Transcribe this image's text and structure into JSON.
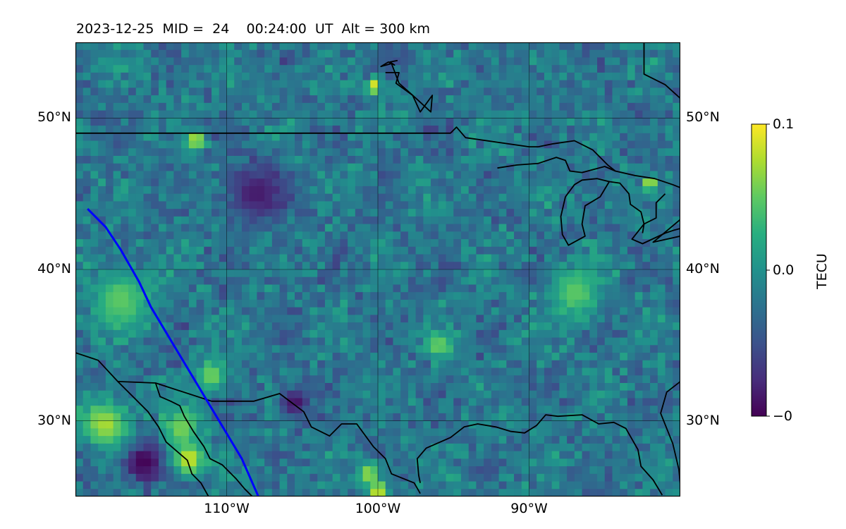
{
  "title": "2023-12-25  MID =  24    00:24:00  UT  Alt = 300 km",
  "chart_data": {
    "type": "heatmap",
    "projection": "equirectangular",
    "lon_range": [
      -120,
      -80
    ],
    "lat_range": [
      25,
      55
    ],
    "grid": true,
    "x_ticks": [
      {
        "lon": -110,
        "label": "110°W"
      },
      {
        "lon": -100,
        "label": "100°W"
      },
      {
        "lon": -90,
        "label": "90°W"
      }
    ],
    "y_ticks": [
      {
        "lat": 50,
        "label": "50°N"
      },
      {
        "lat": 40,
        "label": "40°N"
      },
      {
        "lat": 30,
        "label": "30°N"
      }
    ],
    "colormap": "viridis",
    "colorbar": {
      "label": "TECU",
      "min": -0.1,
      "max": 0.1,
      "ticks": [
        {
          "value": 0.1,
          "label": "0.1"
        },
        {
          "value": 0.0,
          "label": "0.0"
        },
        {
          "value": -0.1,
          "label": "−0.1"
        }
      ]
    },
    "field": {
      "cell_deg": 0.5,
      "mean": -0.02,
      "noise": 0.035,
      "hotspots": [
        {
          "lon": -115.5,
          "lat": 27.2,
          "value": -0.1,
          "radius": 1.4
        },
        {
          "lon": -112.5,
          "lat": 27.5,
          "value": 0.09,
          "radius": 1.0
        },
        {
          "lon": -118,
          "lat": 29.8,
          "value": 0.075,
          "radius": 1.5
        },
        {
          "lon": -113,
          "lat": 29.5,
          "value": 0.06,
          "radius": 1.3
        },
        {
          "lon": -111,
          "lat": 33,
          "value": 0.06,
          "radius": 1.0
        },
        {
          "lon": -100,
          "lat": 25.4,
          "value": 0.1,
          "radius": 0.6
        },
        {
          "lon": -100.6,
          "lat": 26.5,
          "value": 0.07,
          "radius": 0.8
        },
        {
          "lon": -105.5,
          "lat": 31.2,
          "value": -0.09,
          "radius": 1.0
        },
        {
          "lon": -96,
          "lat": 35,
          "value": 0.06,
          "radius": 0.8
        },
        {
          "lon": -112,
          "lat": 48.5,
          "value": 0.1,
          "radius": 0.5
        },
        {
          "lon": -100.3,
          "lat": 52.1,
          "value": 0.1,
          "radius": 0.5
        },
        {
          "lon": -108,
          "lat": 45,
          "value": -0.085,
          "radius": 2.0
        },
        {
          "lon": -117,
          "lat": 38,
          "value": 0.05,
          "radius": 2.0
        },
        {
          "lon": -87,
          "lat": 38.5,
          "value": 0.05,
          "radius": 1.6
        },
        {
          "lon": -82,
          "lat": 45.6,
          "value": 0.1,
          "radius": 0.4
        }
      ]
    },
    "track": {
      "color": "#0000ff",
      "points": [
        [
          -119.2,
          44
        ],
        [
          -118,
          42.8
        ],
        [
          -117,
          41.3
        ],
        [
          -115.8,
          39.2
        ],
        [
          -115,
          37.5
        ],
        [
          -113.5,
          35
        ],
        [
          -112,
          32.5
        ],
        [
          -110.5,
          30
        ],
        [
          -109,
          27.5
        ],
        [
          -107.9,
          25
        ]
      ]
    },
    "coastlines": {
      "color": "#000000",
      "lines": [
        [
          [
            -120,
            49
          ],
          [
            -95.2,
            49
          ],
          [
            -94.8,
            49.4
          ],
          [
            -94.2,
            48.7
          ],
          [
            -90,
            48.1
          ],
          [
            -89.4,
            48.1
          ]
        ],
        [
          [
            -89.4,
            48.1
          ],
          [
            -88.4,
            48.3
          ],
          [
            -87,
            48.5
          ],
          [
            -85.8,
            47.9
          ],
          [
            -84.8,
            46.9
          ],
          [
            -84.3,
            46.5
          ],
          [
            -83,
            46.2
          ],
          [
            -81.7,
            46
          ],
          [
            -80.5,
            45.6
          ],
          [
            -80,
            45.4
          ]
        ],
        [
          [
            -92.1,
            46.7
          ],
          [
            -90.8,
            46.9
          ],
          [
            -89.4,
            47
          ],
          [
            -88.2,
            47.4
          ],
          [
            -87.6,
            47.2
          ],
          [
            -87.3,
            46.5
          ],
          [
            -86.5,
            46.4
          ],
          [
            -85,
            46.8
          ],
          [
            -84.3,
            46.5
          ]
        ],
        [
          [
            -87.6,
            44.8
          ],
          [
            -87,
            45.6
          ],
          [
            -86.5,
            45.9
          ],
          [
            -85.5,
            46
          ],
          [
            -84.7,
            45.8
          ],
          [
            -85.3,
            44.8
          ],
          [
            -86.3,
            44.2
          ],
          [
            -86.5,
            43
          ],
          [
            -86.3,
            42.2
          ],
          [
            -87.4,
            41.6
          ],
          [
            -87.8,
            42.3
          ],
          [
            -87.9,
            43.5
          ],
          [
            -87.6,
            44.8
          ]
        ],
        [
          [
            -84.7,
            45.8
          ],
          [
            -84,
            45.7
          ],
          [
            -83.4,
            45
          ],
          [
            -83.3,
            44.3
          ],
          [
            -82.6,
            43.8
          ],
          [
            -82.4,
            43
          ],
          [
            -82.5,
            42.4
          ]
        ],
        [
          [
            -81,
            45
          ],
          [
            -81.6,
            44.4
          ],
          [
            -81.6,
            43.4
          ],
          [
            -82.4,
            43
          ],
          [
            -83.2,
            42
          ],
          [
            -82.5,
            41.7
          ],
          [
            -81,
            42.4
          ],
          [
            -80.4,
            42.6
          ],
          [
            -80,
            42.7
          ]
        ],
        [
          [
            -80,
            43.3
          ],
          [
            -81.8,
            41.8
          ],
          [
            -80,
            42.2
          ]
        ],
        [
          [
            -80,
            51.3
          ],
          [
            -81,
            52.2
          ],
          [
            -82.4,
            52.9
          ],
          [
            -82.4,
            55
          ]
        ],
        [
          [
            -99.5,
            53
          ],
          [
            -98.6,
            53
          ],
          [
            -98.8,
            52.3
          ],
          [
            -97.7,
            51.5
          ],
          [
            -97.2,
            50.4
          ],
          [
            -96.4,
            51.5
          ],
          [
            -96.5,
            50.4
          ],
          [
            -97.7,
            51.5
          ],
          [
            -98.6,
            52.3
          ],
          [
            -99.1,
            53.6
          ],
          [
            -99.8,
            53.4
          ],
          [
            -99.3,
            53.7
          ],
          [
            -98.9,
            53.5
          ],
          [
            -99.2,
            53.7
          ],
          [
            -98.7,
            53.8
          ]
        ],
        [
          [
            -120,
            34.5
          ],
          [
            -118.5,
            34
          ],
          [
            -117.2,
            32.6
          ],
          [
            -116.2,
            31.6
          ],
          [
            -115.2,
            30.6
          ],
          [
            -114.5,
            29.6
          ],
          [
            -114,
            28.6
          ],
          [
            -112.6,
            27.4
          ],
          [
            -112.3,
            26.5
          ],
          [
            -111.7,
            25.9
          ],
          [
            -111.2,
            25
          ]
        ],
        [
          [
            -117.2,
            32.6
          ],
          [
            -114.7,
            32.5
          ],
          [
            -111,
            31.3
          ],
          [
            -108.2,
            31.3
          ],
          [
            -106.5,
            31.8
          ],
          [
            -104.9,
            30.6
          ],
          [
            -104.4,
            29.6
          ],
          [
            -103.2,
            29
          ],
          [
            -102.4,
            29.8
          ],
          [
            -101.4,
            29.8
          ],
          [
            -100.3,
            28.3
          ],
          [
            -99.5,
            27.5
          ],
          [
            -99.1,
            26.5
          ],
          [
            -97.6,
            25.9
          ],
          [
            -97.2,
            25.2
          ]
        ],
        [
          [
            -114.7,
            32.5
          ],
          [
            -114.4,
            31.6
          ],
          [
            -113.7,
            31.3
          ],
          [
            -113.1,
            31
          ],
          [
            -112.8,
            30.3
          ],
          [
            -112.2,
            29.3
          ],
          [
            -111.5,
            28.3
          ],
          [
            -111.1,
            27.5
          ],
          [
            -110.3,
            27.1
          ],
          [
            -109.4,
            26.2
          ],
          [
            -108.8,
            25.5
          ],
          [
            -108.3,
            25
          ]
        ],
        [
          [
            -97.2,
            25.9
          ],
          [
            -97.3,
            26.4
          ],
          [
            -97.4,
            27.5
          ],
          [
            -96.8,
            28.2
          ],
          [
            -95.2,
            28.9
          ],
          [
            -94.3,
            29.6
          ],
          [
            -93.4,
            29.8
          ],
          [
            -92.2,
            29.6
          ],
          [
            -91.2,
            29.3
          ],
          [
            -90.3,
            29.2
          ],
          [
            -89.5,
            29.7
          ],
          [
            -88.9,
            30.4
          ],
          [
            -88.1,
            30.3
          ],
          [
            -86.5,
            30.4
          ],
          [
            -85.4,
            29.8
          ],
          [
            -84.4,
            29.9
          ],
          [
            -83.6,
            29.5
          ],
          [
            -82.8,
            28.1
          ],
          [
            -82.6,
            27
          ],
          [
            -81.8,
            26.1
          ],
          [
            -81.2,
            25.1
          ]
        ],
        [
          [
            -80,
            32.6
          ],
          [
            -80.9,
            31.9
          ],
          [
            -81.3,
            30.5
          ],
          [
            -80.5,
            28.5
          ],
          [
            -80.1,
            26.8
          ],
          [
            -80,
            25.8
          ]
        ]
      ]
    }
  }
}
